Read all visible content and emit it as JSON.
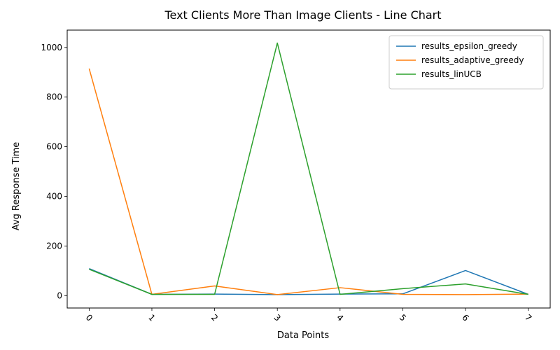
{
  "chart_data": {
    "type": "line",
    "title": "Text Clients More Than Image Clients - Line Chart",
    "xlabel": "Data Points",
    "ylabel": "Avg Response Time",
    "x": [
      0,
      1,
      2,
      3,
      4,
      5,
      6,
      7
    ],
    "x_tick_labels": [
      "0",
      "1",
      "2",
      "3",
      "4",
      "5",
      "6",
      "7"
    ],
    "y_ticks": [
      0,
      200,
      400,
      600,
      800,
      1000
    ],
    "y_tick_labels": [
      "0",
      "200",
      "400",
      "600",
      "800",
      "1000"
    ],
    "xlim": [
      -0.35,
      7.35
    ],
    "ylim": [
      -50,
      1070
    ],
    "grid": false,
    "legend_position": "top-right",
    "series": [
      {
        "name": "results_epsilon_greedy",
        "color": "#1f77b4",
        "values": [
          109,
          5,
          6,
          4,
          6,
          7,
          101,
          5
        ]
      },
      {
        "name": "results_adaptive_greedy",
        "color": "#ff7f0e",
        "values": [
          915,
          5,
          39,
          4,
          32,
          5,
          4,
          6
        ]
      },
      {
        "name": "results_linUCB",
        "color": "#2ca02c",
        "values": [
          106,
          5,
          5,
          1018,
          5,
          28,
          47,
          5
        ]
      }
    ]
  }
}
